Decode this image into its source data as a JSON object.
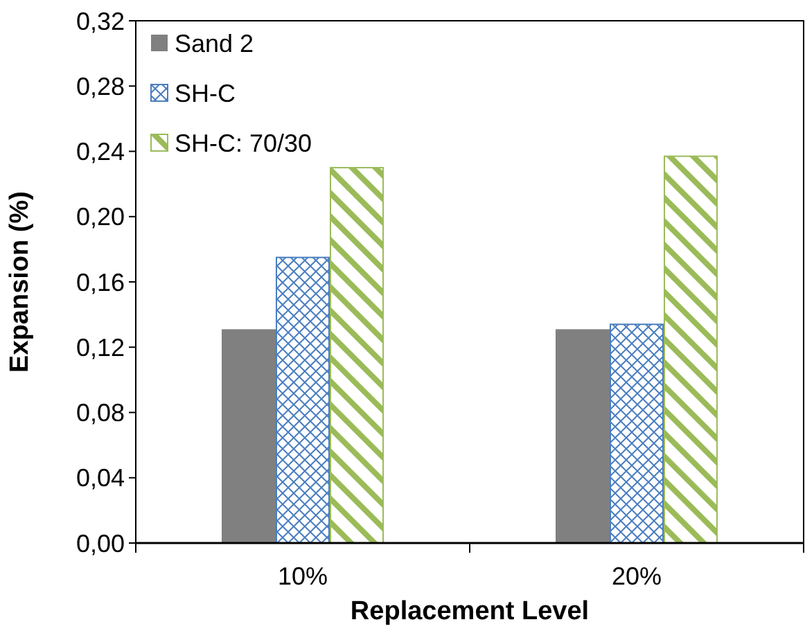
{
  "chart_data": {
    "type": "bar",
    "xlabel": "Replacement Level",
    "ylabel": "Expansion (%)",
    "categories": [
      "10%",
      "20%"
    ],
    "series": [
      {
        "name": "Sand 2",
        "color": "#808080",
        "values": [
          0.131,
          0.131
        ]
      },
      {
        "name": "SH-C",
        "color": "#4a7ebf",
        "values": [
          0.175,
          0.134
        ]
      },
      {
        "name": "SH-C: 70/30",
        "color": "#9bbb59",
        "values": [
          0.23,
          0.237
        ]
      }
    ],
    "ylim": [
      0,
      0.32
    ],
    "yticks": [
      {
        "value": 0,
        "label": "0,00"
      },
      {
        "value": 0.04,
        "label": "0,04"
      },
      {
        "value": 0.08,
        "label": "0,08"
      },
      {
        "value": 0.12,
        "label": "0,12"
      },
      {
        "value": 0.16,
        "label": "0,16"
      },
      {
        "value": 0.2,
        "label": "0,20"
      },
      {
        "value": 0.24,
        "label": "0,24"
      },
      {
        "value": 0.28,
        "label": "0,28"
      },
      {
        "value": 0.32,
        "label": "0,32"
      }
    ],
    "grid": false,
    "legend": "top left"
  }
}
